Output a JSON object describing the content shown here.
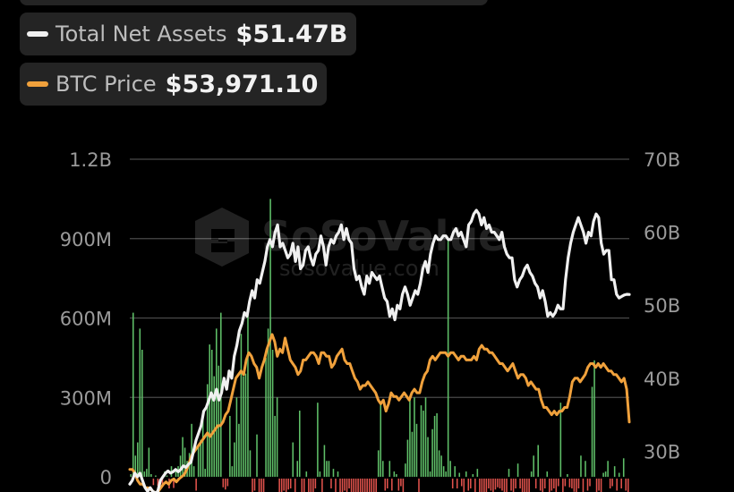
{
  "legend": {
    "assets": {
      "label": "Total Net Assets",
      "value": "$51.47B"
    },
    "btc": {
      "label": "BTC Price",
      "value": "$53,971.10"
    }
  },
  "watermark": {
    "brand": "SoSoValue",
    "url": "sosovalue.com"
  },
  "colors": {
    "background": "#000000",
    "assets_line": "#f0f0f0",
    "btc_line": "#f0a13c",
    "inflow_bar": "#5fbf68",
    "outflow_bar": "#e0524c",
    "grid": "#4a4a4a",
    "pill": "#242424"
  },
  "chart_data": {
    "type": "bar+line",
    "left_axis": {
      "ticks": [
        "0",
        "300M",
        "600M",
        "900M",
        "1.2B"
      ],
      "range": [
        0,
        1200000000
      ]
    },
    "right_axis": {
      "ticks": [
        "30B",
        "40B",
        "50B",
        "60B",
        "70B"
      ],
      "range": [
        26500000000,
        70000000000
      ]
    },
    "grid": true,
    "flow_bars_millions": [
      10,
      620,
      80,
      130,
      560,
      480,
      20,
      30,
      110,
      10,
      -5,
      5,
      -8,
      -6,
      -4,
      20,
      5,
      -20,
      40,
      -18,
      25,
      40,
      80,
      150,
      110,
      60,
      90,
      200,
      40,
      -30,
      120,
      140,
      250,
      30,
      350,
      500,
      480,
      380,
      560,
      420,
      620,
      -15,
      -25,
      -10,
      230,
      40,
      130,
      300,
      200,
      540,
      380,
      390,
      620,
      100,
      -40,
      -30,
      160,
      -90,
      -60,
      -100,
      450,
      560,
      1050,
      480,
      230,
      300,
      -40,
      -80,
      -30,
      -60,
      -25,
      -20,
      130,
      -40,
      60,
      250,
      -60,
      -40,
      20,
      -100,
      -120,
      -40,
      -20,
      280,
      20,
      -50,
      120,
      60,
      60,
      -20,
      30,
      -50,
      20,
      -60,
      -80,
      -30,
      -40,
      -20,
      -60,
      -90,
      -120,
      -80,
      -110,
      -140,
      -50,
      -70,
      -90,
      -60,
      -100,
      -40,
      100,
      280,
      60,
      -30,
      -20,
      60,
      -30,
      20,
      10,
      -30,
      -10,
      -50,
      50,
      140,
      300,
      170,
      300,
      200,
      -40,
      270,
      250,
      300,
      150,
      20,
      180,
      230,
      240,
      100,
      80,
      40,
      20,
      900,
      60,
      -20,
      40,
      -20,
      15,
      -10,
      -40,
      20,
      -30,
      -20,
      10,
      -40,
      30,
      -40,
      -60,
      -40,
      -60,
      -20,
      -30,
      -40,
      -25,
      -15,
      -20,
      -30,
      -40,
      -60,
      30,
      -30,
      -40,
      -20,
      50,
      -20,
      -60,
      -40,
      -60,
      -40,
      20,
      80,
      -20,
      120,
      -30,
      -60,
      -20,
      20,
      -40,
      -30,
      -20,
      -40,
      -10,
      280,
      -40,
      -10,
      10,
      -15,
      -20,
      -35,
      -60,
      -20,
      80,
      -40,
      60,
      -30,
      -10,
      340,
      440,
      -70,
      -30,
      -50,
      15,
      20,
      60,
      -20,
      -10,
      40,
      -30,
      15,
      -20,
      70,
      -30,
      -40
    ],
    "total_net_assets_billions": [
      25.5,
      26.0,
      27.0,
      26.5,
      27.0,
      26.0,
      25.0,
      24.5,
      25.0,
      24.5,
      24.3,
      24.5,
      26.0,
      26.5,
      27.0,
      27.3,
      27.0,
      27.2,
      27.5,
      27.2,
      27.5,
      28.0,
      27.8,
      28.2,
      28.5,
      30.0,
      31.5,
      32.5,
      33.5,
      35.5,
      36.0,
      37.0,
      38.0,
      37.0,
      38.5,
      37.0,
      38.0,
      40.0,
      38.5,
      41.0,
      40.0,
      43.0,
      44.5,
      46.5,
      47.5,
      49.0,
      48.5,
      50.5,
      52.0,
      51.0,
      53.5,
      53.0,
      54.5,
      56.0,
      58.0,
      59.0,
      58.0,
      60.0,
      61.0,
      58.0,
      58.5,
      57.5,
      56.5,
      57.0,
      58.5,
      56.0,
      58.0,
      55.0,
      55.5,
      57.5,
      58.0,
      56.5,
      55.5,
      57.0,
      57.5,
      59.5,
      58.0,
      55.5,
      58.0,
      59.0,
      58.5,
      59.5,
      60.0,
      61.0,
      59.0,
      60.5,
      59.0,
      58.5,
      55.0,
      53.5,
      54.0,
      52.5,
      51.5,
      54.0,
      53.0,
      54.5,
      54.0,
      53.5,
      54.0,
      52.5,
      51.0,
      50.5,
      48.5,
      49.5,
      48.0,
      50.0,
      49.5,
      51.5,
      52.5,
      51.5,
      50.0,
      51.0,
      52.0,
      51.5,
      53.0,
      55.0,
      56.0,
      54.5,
      57.0,
      58.5,
      59.5,
      59.0,
      59.0,
      59.5,
      59.5,
      59.0,
      59.0,
      60.0,
      60.5,
      59.5,
      60.0,
      59.0,
      58.0,
      61.0,
      61.5,
      62.5,
      63.0,
      62.5,
      61.0,
      62.0,
      60.5,
      61.0,
      60.0,
      60.0,
      59.5,
      59.0,
      60.0,
      58.0,
      57.0,
      56.5,
      56.5,
      53.5,
      52.5,
      53.5,
      54.0,
      55.0,
      55.5,
      54.5,
      54.0,
      53.0,
      52.5,
      51.0,
      52.0,
      50.5,
      48.5,
      49.0,
      48.5,
      49.0,
      50.0,
      49.5,
      49.5,
      53.5,
      56.5,
      58.5,
      60.0,
      61.0,
      62.0,
      61.0,
      60.0,
      58.5,
      60.0,
      59.5,
      61.5,
      62.5,
      62.0,
      58.5,
      57.0,
      57.5,
      57.5,
      53.5,
      53.5,
      51.5,
      51.0,
      51.2,
      51.4,
      51.5,
      51.47
    ],
    "btc_price_billions_scale": [
      27.5,
      27.5,
      27.0,
      26.0,
      25.5,
      25.5,
      25.0,
      25.0,
      24.8,
      24.5,
      24.3,
      24.5,
      25.0,
      25.5,
      25.8,
      25.5,
      26.0,
      26.2,
      25.8,
      26.2,
      26.5,
      26.8,
      27.5,
      28.5,
      29.5,
      30.0,
      30.5,
      31.0,
      31.5,
      32.0,
      32.5,
      32.0,
      32.5,
      33.0,
      33.5,
      33.5,
      34.0,
      35.0,
      35.5,
      37.0,
      38.5,
      40.0,
      40.5,
      41.0,
      40.5,
      42.5,
      43.5,
      43.0,
      42.0,
      41.5,
      40.0,
      41.5,
      42.5,
      44.0,
      45.0,
      46.0,
      45.0,
      43.0,
      44.0,
      43.5,
      45.5,
      44.0,
      42.5,
      42.0,
      41.5,
      40.5,
      41.0,
      42.5,
      42.5,
      43.0,
      43.5,
      43.5,
      43.0,
      42.0,
      43.5,
      43.5,
      43.0,
      43.0,
      41.5,
      42.0,
      43.0,
      43.5,
      44.0,
      42.5,
      42.0,
      42.0,
      41.0,
      40.0,
      39.5,
      38.5,
      39.0,
      39.0,
      39.5,
      39.0,
      38.5,
      38.0,
      37.0,
      36.5,
      37.0,
      35.5,
      36.5,
      38.0,
      37.5,
      37.5,
      37.0,
      37.5,
      38.0,
      37.5,
      37.0,
      38.0,
      38.5,
      38.0,
      38.0,
      39.5,
      40.5,
      41.0,
      42.5,
      43.0,
      42.5,
      43.0,
      43.5,
      43.5,
      43.5,
      43.0,
      43.5,
      43.5,
      43.0,
      42.5,
      43.0,
      43.0,
      42.5,
      42.5,
      42.5,
      43.0,
      42.5,
      44.0,
      44.5,
      44.0,
      44.0,
      43.5,
      43.5,
      43.0,
      42.5,
      42.0,
      42.0,
      41.5,
      41.0,
      41.5,
      42.0,
      41.0,
      40.0,
      40.5,
      40.5,
      40.0,
      39.0,
      39.5,
      39.0,
      38.5,
      38.5,
      37.0,
      36.0,
      36.0,
      35.5,
      35.0,
      35.5,
      35.0,
      35.5,
      35.5,
      36.0,
      36.0,
      37.5,
      39.5,
      40.0,
      40.0,
      39.5,
      40.0,
      40.5,
      41.5,
      42.0,
      42.0,
      41.5,
      42.0,
      41.5,
      42.0,
      41.5,
      41.0,
      41.0,
      40.5,
      40.5,
      40.0,
      39.5,
      40.0,
      38.5,
      34.0
    ]
  }
}
